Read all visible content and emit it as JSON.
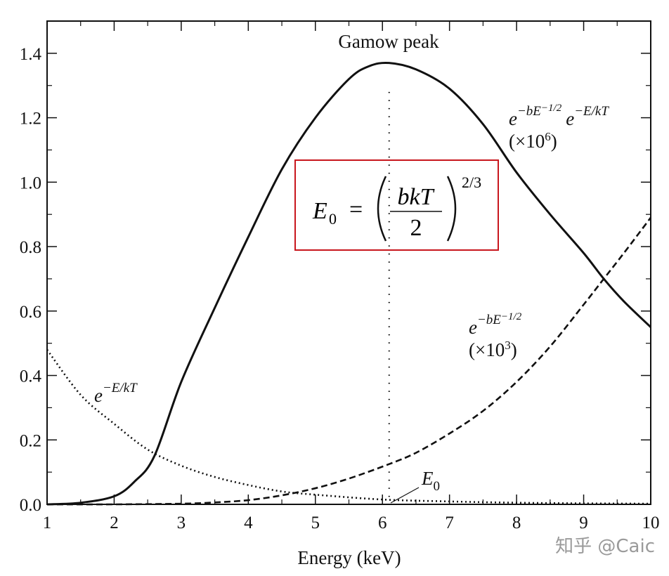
{
  "chart_data": {
    "type": "line",
    "title": "",
    "xlabel": "Energy (keV)",
    "ylabel": "",
    "xlim": [
      1,
      10
    ],
    "ylim": [
      0,
      1.5
    ],
    "xticks": [
      "1",
      "2",
      "3",
      "4",
      "5",
      "6",
      "7",
      "8",
      "9",
      "10"
    ],
    "yticks": [
      "0.0",
      "0.2",
      "0.4",
      "0.6",
      "0.8",
      "1.0",
      "1.2",
      "1.4"
    ],
    "grid": false,
    "series": [
      {
        "name": "e^{-bE^{-1/2}} e^{-E/kT} (×10^6)",
        "style": "solid",
        "x": [
          1,
          1.5,
          2,
          2.3,
          2.6,
          3,
          3.5,
          4,
          4.5,
          5,
          5.5,
          5.8,
          6.1,
          6.5,
          7,
          7.5,
          8,
          8.5,
          9,
          9.3,
          9.6,
          10
        ],
        "y": [
          0,
          0.005,
          0.025,
          0.07,
          0.15,
          0.38,
          0.61,
          0.83,
          1.04,
          1.2,
          1.32,
          1.36,
          1.37,
          1.35,
          1.29,
          1.18,
          1.03,
          0.9,
          0.78,
          0.7,
          0.63,
          0.55
        ]
      },
      {
        "name": "e^{-bE^{-1/2}} (×10^3)",
        "style": "dashed",
        "x": [
          1,
          2,
          3,
          3.5,
          4,
          4.5,
          5,
          5.5,
          6.1,
          6.5,
          7,
          7.5,
          8,
          8.5,
          9,
          9.3,
          9.6,
          10
        ],
        "y": [
          0,
          0,
          0.002,
          0.006,
          0.013,
          0.028,
          0.05,
          0.08,
          0.125,
          0.16,
          0.22,
          0.29,
          0.38,
          0.49,
          0.62,
          0.7,
          0.78,
          0.89
        ]
      },
      {
        "name": "e^{-E/kT}",
        "style": "dotted",
        "x": [
          1,
          1.5,
          2,
          2.5,
          3,
          3.5,
          4,
          4.5,
          5,
          6,
          7,
          8,
          9,
          10
        ],
        "y": [
          0.48,
          0.34,
          0.25,
          0.17,
          0.12,
          0.085,
          0.06,
          0.04,
          0.03,
          0.015,
          0.009,
          0.005,
          0.003,
          0.002
        ]
      }
    ],
    "annotations": {
      "peak_label": "Gamow peak",
      "peak_energy": 6.1,
      "e0_label": "E",
      "e0_sub": "0",
      "combined": {
        "base1": "e",
        "sup1": "−bE",
        "sup1b": "−1/2",
        "base2": "e",
        "sup2": "−E/kT",
        "scale": "(×10",
        "scale_exp": "6",
        "close": ")"
      },
      "tunnel": {
        "base": "e",
        "sup": "−bE",
        "supb": "−1/2",
        "scale": "(×10",
        "scale_exp": "3",
        "close": ")"
      },
      "boltz": {
        "base": "e",
        "sup": "−E/kT"
      }
    },
    "formula": {
      "lhs": "E",
      "lhs_sub": "0",
      "eq": "=",
      "num": "bkT",
      "den": "2",
      "exp": "2/3"
    }
  },
  "watermark": "知乎 @Caic",
  "colors": {
    "formula_box": "#c8161d",
    "line": "#111111"
  }
}
